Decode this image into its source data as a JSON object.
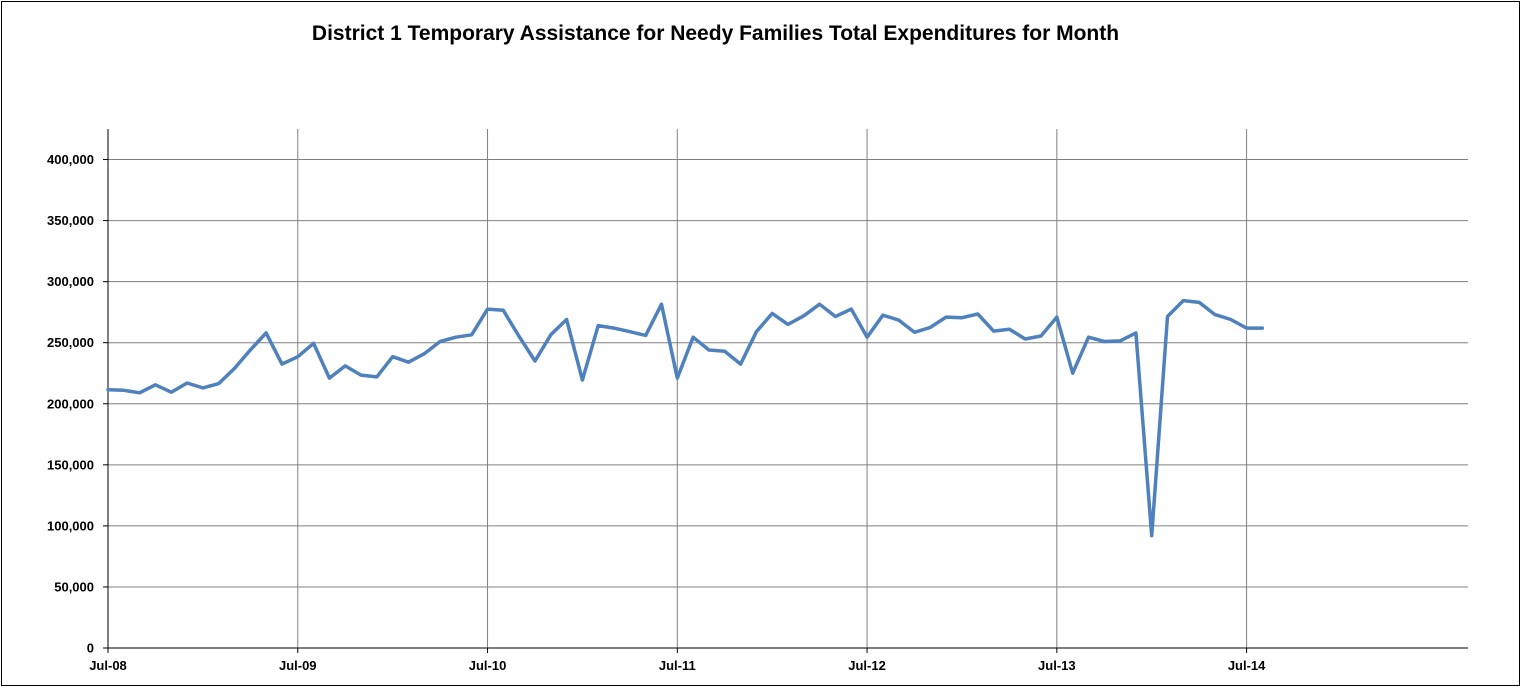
{
  "chart_data": {
    "type": "line",
    "title": "District 1 Temporary Assistance for Needy Families Total Expenditures for Month",
    "xlabel": "",
    "ylabel": "",
    "x_tick_labels": [
      "Jul-08",
      "Jul-09",
      "Jul-10",
      "Jul-11",
      "Jul-12",
      "Jul-13",
      "Jul-14"
    ],
    "y_tick_labels": [
      "0",
      "50,000",
      "100,000",
      "150,000",
      "200,000",
      "250,000",
      "300,000",
      "350,000",
      "400,000"
    ],
    "x_range": [
      "2008-07",
      "2015-09"
    ],
    "ylim": [
      0,
      425000
    ],
    "grid": true,
    "series_color": "#4F81BD",
    "x": [
      "2008-07",
      "2008-08",
      "2008-09",
      "2008-10",
      "2008-11",
      "2008-12",
      "2009-01",
      "2009-02",
      "2009-03",
      "2009-04",
      "2009-05",
      "2009-06",
      "2009-07",
      "2009-08",
      "2009-09",
      "2009-10",
      "2009-11",
      "2009-12",
      "2010-01",
      "2010-02",
      "2010-03",
      "2010-04",
      "2010-05",
      "2010-06",
      "2010-07",
      "2010-08",
      "2010-09",
      "2010-10",
      "2010-11",
      "2010-12",
      "2011-01",
      "2011-02",
      "2011-03",
      "2011-04",
      "2011-05",
      "2011-06",
      "2011-07",
      "2011-08",
      "2011-09",
      "2011-10",
      "2011-11",
      "2011-12",
      "2012-01",
      "2012-02",
      "2012-03",
      "2012-04",
      "2012-05",
      "2012-06",
      "2012-07",
      "2012-08",
      "2012-09",
      "2012-10",
      "2012-11",
      "2012-12",
      "2013-01",
      "2013-02",
      "2013-03",
      "2013-04",
      "2013-05",
      "2013-06",
      "2013-07",
      "2013-08",
      "2013-09",
      "2013-10",
      "2013-11",
      "2013-12",
      "2014-01",
      "2014-02",
      "2014-03",
      "2014-04",
      "2014-05",
      "2014-06",
      "2014-07",
      "2014-08"
    ],
    "values": [
      211500,
      211000,
      209000,
      215500,
      209500,
      217000,
      213000,
      216500,
      229000,
      244000,
      258000,
      232500,
      238500,
      249500,
      221000,
      231000,
      223500,
      222000,
      238500,
      234000,
      241000,
      251000,
      254500,
      256500,
      277500,
      276500,
      255000,
      235000,
      256500,
      269000,
      219500,
      264000,
      262000,
      259000,
      256000,
      281500,
      221000,
      254500,
      244000,
      243000,
      232500,
      259000,
      274000,
      265000,
      272000,
      281500,
      271500,
      277500,
      254500,
      272500,
      268500,
      258500,
      262500,
      271000,
      270500,
      273500,
      259500,
      261000,
      253000,
      255500,
      271000,
      225000,
      254500,
      251000,
      251500,
      258000,
      92000,
      271500,
      284500,
      283000,
      273000,
      269000,
      262000,
      262000
    ]
  }
}
